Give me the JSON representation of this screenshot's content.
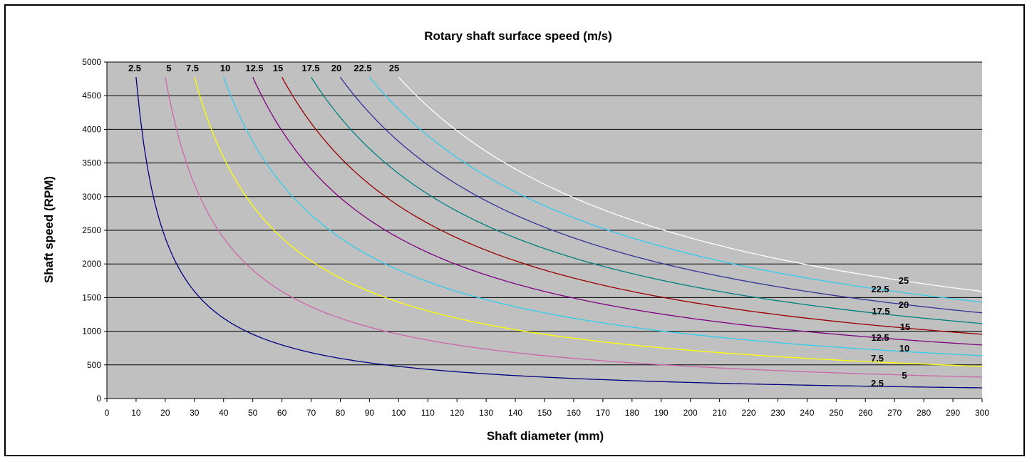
{
  "chart_data": {
    "type": "line",
    "title": "Rotary shaft surface speed (m/s)",
    "xlabel": "Shaft diameter (mm)",
    "ylabel": "Shaft speed (RPM)",
    "xlim": [
      0,
      300
    ],
    "ylim": [
      0,
      5000
    ],
    "x_ticks": [
      "0",
      "10",
      "20",
      "30",
      "40",
      "50",
      "60",
      "70",
      "80",
      "90",
      "100",
      "110",
      "120",
      "130",
      "140",
      "150",
      "160",
      "170",
      "180",
      "190",
      "200",
      "210",
      "220",
      "230",
      "240",
      "250",
      "260",
      "270",
      "280",
      "290",
      "300"
    ],
    "y_ticks": [
      "0",
      "500",
      "1000",
      "1500",
      "2000",
      "2500",
      "3000",
      "3500",
      "4000",
      "4500",
      "5000"
    ],
    "grid": "horizontal",
    "plot_background": "#c0c0c0",
    "x_range_per_series": [
      10,
      300
    ],
    "series": [
      {
        "name": "2.5",
        "surface_speed_m_s": 2.5,
        "color": "#000080",
        "points": [
          [
            10,
            4775
          ],
          [
            20,
            2387
          ],
          [
            30,
            1592
          ],
          [
            50,
            955
          ],
          [
            100,
            477
          ],
          [
            150,
            318
          ],
          [
            200,
            239
          ],
          [
            300,
            159
          ]
        ]
      },
      {
        "name": "5",
        "surface_speed_m_s": 5,
        "color": "#cc66aa",
        "points": [
          [
            20,
            4775
          ],
          [
            30,
            3183
          ],
          [
            50,
            1910
          ],
          [
            100,
            955
          ],
          [
            150,
            637
          ],
          [
            200,
            477
          ],
          [
            300,
            318
          ]
        ]
      },
      {
        "name": "7.5",
        "surface_speed_m_s": 7.5,
        "color": "#ffff00",
        "points": [
          [
            30,
            4775
          ],
          [
            50,
            2865
          ],
          [
            100,
            1432
          ],
          [
            150,
            955
          ],
          [
            200,
            716
          ],
          [
            300,
            477
          ]
        ]
      },
      {
        "name": "10",
        "surface_speed_m_s": 10,
        "color": "#33ccee",
        "points": [
          [
            40,
            4775
          ],
          [
            50,
            3820
          ],
          [
            100,
            1910
          ],
          [
            150,
            1273
          ],
          [
            200,
            955
          ],
          [
            300,
            637
          ]
        ]
      },
      {
        "name": "12.5",
        "surface_speed_m_s": 12.5,
        "color": "#800080",
        "points": [
          [
            50,
            4775
          ],
          [
            100,
            2387
          ],
          [
            150,
            1592
          ],
          [
            200,
            1194
          ],
          [
            300,
            796
          ]
        ]
      },
      {
        "name": "15",
        "surface_speed_m_s": 15,
        "color": "#990000",
        "points": [
          [
            60,
            4775
          ],
          [
            100,
            2865
          ],
          [
            150,
            1910
          ],
          [
            200,
            1432
          ],
          [
            300,
            955
          ]
        ]
      },
      {
        "name": "17.5",
        "surface_speed_m_s": 17.5,
        "color": "#008080",
        "points": [
          [
            70,
            4775
          ],
          [
            100,
            3342
          ],
          [
            150,
            2228
          ],
          [
            200,
            1671
          ],
          [
            300,
            1114
          ]
        ]
      },
      {
        "name": "20",
        "surface_speed_m_s": 20,
        "color": "#333399",
        "points": [
          [
            80,
            4775
          ],
          [
            100,
            3820
          ],
          [
            150,
            2546
          ],
          [
            200,
            1910
          ],
          [
            300,
            1273
          ]
        ]
      },
      {
        "name": "22.5",
        "surface_speed_m_s": 22.5,
        "color": "#33ccee",
        "points": [
          [
            90,
            4775
          ],
          [
            100,
            4297
          ],
          [
            150,
            2865
          ],
          [
            200,
            2149
          ],
          [
            300,
            1432
          ]
        ]
      },
      {
        "name": "25",
        "surface_speed_m_s": 25,
        "color": "#ffffff",
        "points": [
          [
            100,
            4775
          ],
          [
            150,
            3183
          ],
          [
            200,
            2387
          ],
          [
            300,
            1592
          ]
        ]
      }
    ],
    "top_labels": [
      "2.5",
      "5",
      "7.5",
      "10",
      "12.5",
      "15",
      "17.5",
      "20",
      "22.5",
      "25"
    ],
    "right_labels": [
      "2.5",
      "5",
      "7.5",
      "10",
      "12.5",
      "15",
      "17.5",
      "20",
      "22.5",
      "25"
    ]
  }
}
